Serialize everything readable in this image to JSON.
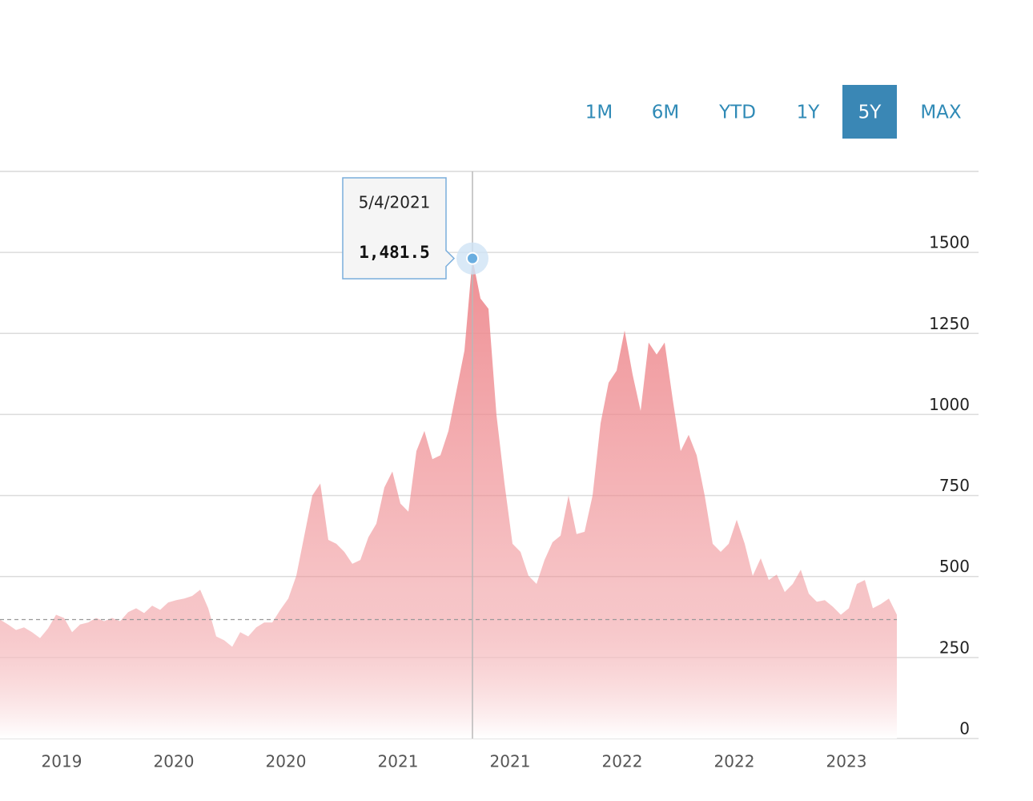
{
  "range_buttons": [
    "1M",
    "6M",
    "YTD",
    "1Y",
    "5Y",
    "MAX"
  ],
  "active_button": "5Y",
  "chart_data": {
    "type": "area",
    "categories": [
      null,
      null,
      null,
      null,
      null,
      null,
      null,
      null,
      "2019",
      null,
      null,
      null,
      null,
      null,
      null,
      null,
      null,
      null,
      null,
      null,
      null,
      null,
      "2020",
      null,
      null,
      null,
      null,
      null,
      null,
      null,
      null,
      null,
      null,
      null,
      null,
      null,
      "2020",
      null,
      null,
      null,
      null,
      null,
      null,
      null,
      null,
      null,
      null,
      null,
      null,
      null,
      "2021",
      null,
      null,
      null,
      null,
      null,
      null,
      null,
      null,
      null,
      null,
      null,
      null,
      null,
      "2021",
      null,
      null,
      null,
      null,
      null,
      null,
      null,
      null,
      null,
      null,
      null,
      null,
      null,
      "2022",
      null,
      null,
      null,
      null,
      null,
      null,
      null,
      null,
      null,
      null,
      null,
      null,
      null,
      "2022",
      null,
      null,
      null,
      null,
      null,
      null,
      null,
      null,
      null,
      null,
      null,
      null,
      null,
      "2023",
      null,
      null,
      null,
      null,
      null,
      null
    ],
    "series": [
      {
        "color": "#ee8a8f",
        "values": [
          367,
          352,
          335,
          343,
          328,
          310,
          340,
          382,
          372,
          328,
          352,
          358,
          372,
          362,
          372,
          362,
          390,
          402,
          387,
          410,
          397,
          420,
          427,
          432,
          440,
          459,
          402,
          315,
          303,
          283,
          328,
          315,
          343,
          358,
          358,
          397,
          432,
          502,
          626,
          750,
          787,
          613,
          601,
          576,
          539,
          551,
          621,
          663,
          775,
          824,
          725,
          700,
          887,
          949,
          862,
          874,
          949,
          1073,
          1197,
          1481.5,
          1358,
          1326,
          998,
          787,
          601,
          576,
          502,
          477,
          551,
          606,
          626,
          750,
          631,
          638,
          750,
          973,
          1098,
          1135,
          1259,
          1123,
          1011,
          1222,
          1185,
          1222,
          1048,
          887,
          937,
          874,
          750,
          601,
          576,
          601,
          675,
          601,
          502,
          556,
          489,
          506,
          452,
          477,
          521,
          447,
          422,
          427,
          407,
          382,
          402,
          477,
          489,
          402,
          415,
          432,
          382
        ]
      }
    ],
    "ylim": [
      0,
      1750
    ],
    "yticks": [
      0,
      250,
      500,
      750,
      1000,
      1250,
      1500
    ],
    "grid": true,
    "reference_line": 367,
    "tooltip": {
      "date": "5/4/2021",
      "value": 1481.5,
      "label": "1,481.5"
    }
  }
}
